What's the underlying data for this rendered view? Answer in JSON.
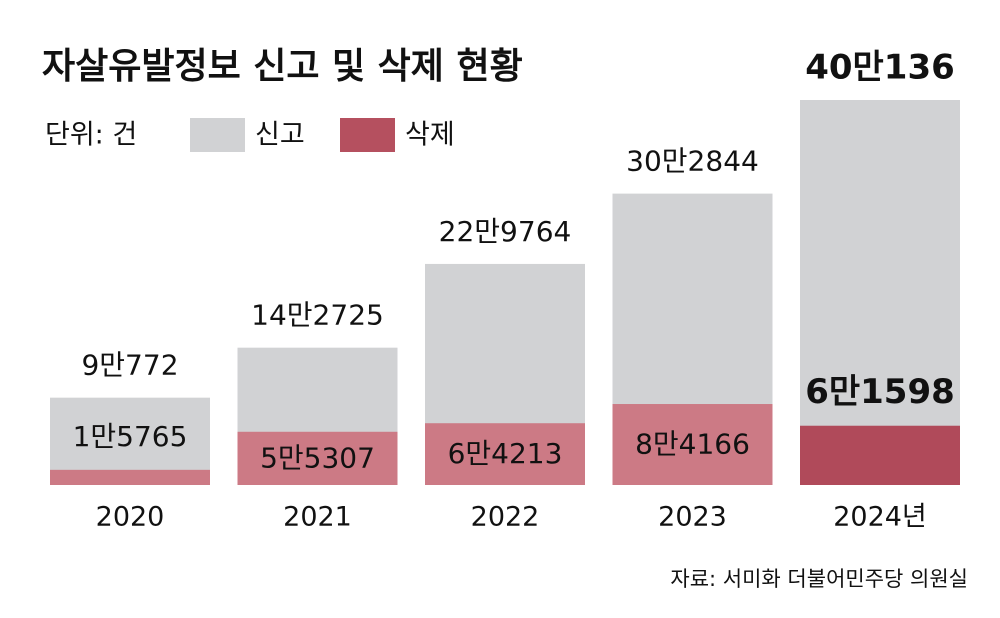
{
  "chart_data": {
    "type": "overlap-bar",
    "title": "자살유발정보 신고 및 삭제 현황",
    "unit_label": "단위: 건",
    "source": "자료: 서미화 더불어민주당 의원실",
    "categories": [
      "2020",
      "2021",
      "2022",
      "2023",
      "2024년"
    ],
    "series": [
      {
        "name": "신고",
        "color": "#d1d2d4",
        "values": [
          90772,
          142725,
          229764,
          302844,
          400136
        ],
        "value_labels": [
          "9만772",
          "14만2725",
          "22만9764",
          "30만2844",
          "40만136"
        ]
      },
      {
        "name": "삭제",
        "color": "#b5505f",
        "colors": [
          "#cc7a85",
          "#cc7a85",
          "#cc7a85",
          "#cc7a85",
          "#b04a5a"
        ],
        "values": [
          15765,
          55307,
          64213,
          84166,
          61598
        ],
        "value_labels": [
          "1만5765",
          "5만5307",
          "6만4213",
          "8만4166",
          "6만1598"
        ]
      }
    ]
  }
}
